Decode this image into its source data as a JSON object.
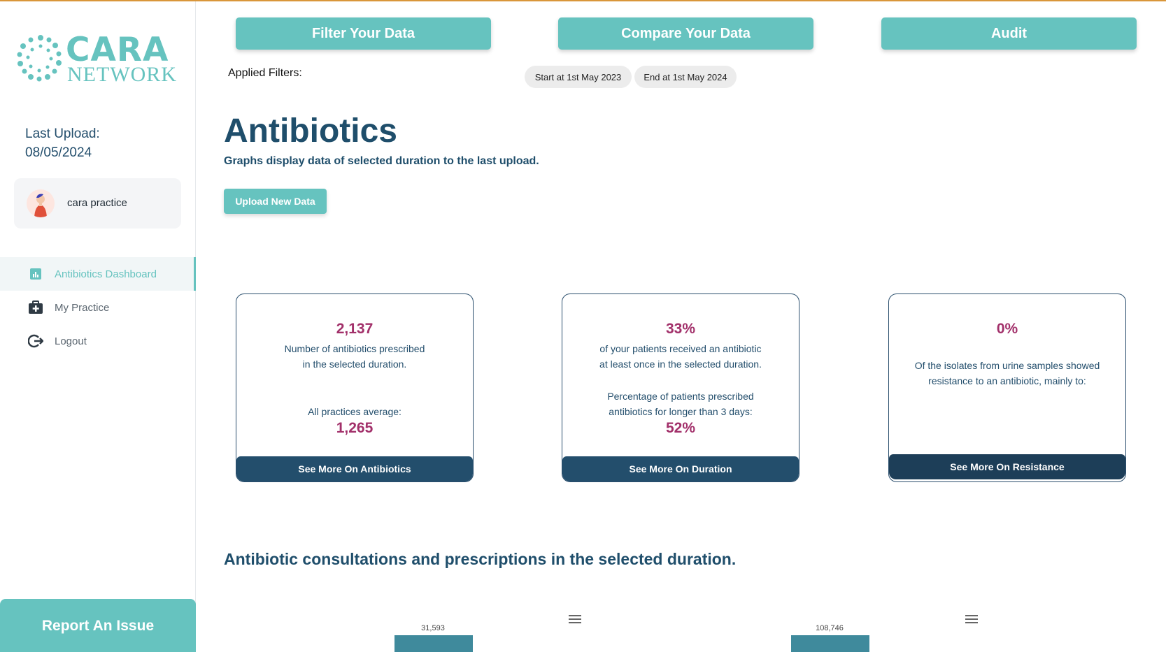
{
  "sidebar": {
    "logo": {
      "top": "CARA",
      "bottom": "NETWORK"
    },
    "last_upload_label": "Last Upload:",
    "last_upload_date": "08/05/2024",
    "profile_name": "cara practice",
    "nav": [
      {
        "label": "Antibiotics Dashboard",
        "icon": "chart-icon",
        "active": true
      },
      {
        "label": "My Practice",
        "icon": "medical-kit-icon",
        "active": false
      },
      {
        "label": "Logout",
        "icon": "logout-icon",
        "active": false
      }
    ],
    "report_label": "Report An Issue"
  },
  "toolbar": {
    "filter_label": "Filter Your Data",
    "compare_label": "Compare Your Data",
    "audit_label": "Audit"
  },
  "filters": {
    "label": "Applied Filters:",
    "chips": [
      "Start at 1st May 2023",
      "End at 1st May 2024"
    ]
  },
  "main": {
    "title": "Antibiotics",
    "subtitle": "Graphs display data of selected duration to the last upload.",
    "upload_label": "Upload New Data"
  },
  "cards": [
    {
      "value": "2,137",
      "line1": "Number of antibiotics prescribed",
      "line2": "in the selected duration.",
      "avg_label": "All practices average:",
      "avg_value": "1,265",
      "cta": "See More On Antibiotics"
    },
    {
      "value": "33%",
      "line1": "of your patients received an antibiotic",
      "line2": "at least once in the selected duration.",
      "line3": "Percentage of patients prescribed",
      "line4": "antibiotics for longer than 3 days:",
      "value2": "52%",
      "cta": "See More On Duration"
    },
    {
      "value": "0%",
      "line1": "Of the isolates from urine samples showed",
      "line2": "resistance to an antibiotic, mainly to:",
      "cta": "See More On Resistance"
    }
  ],
  "section_title": "Antibiotic consultations and prescriptions in the selected duration.",
  "chart_data": [
    {
      "type": "bar",
      "values": [
        31593
      ],
      "data_labels": [
        "31,593"
      ]
    },
    {
      "type": "bar",
      "values": [
        108746
      ],
      "data_labels": [
        "108,746"
      ]
    }
  ],
  "colors": {
    "accent": "#66c3bf",
    "navy": "#234e6c",
    "highlight": "#a2306a",
    "topline": "#d9963a"
  }
}
